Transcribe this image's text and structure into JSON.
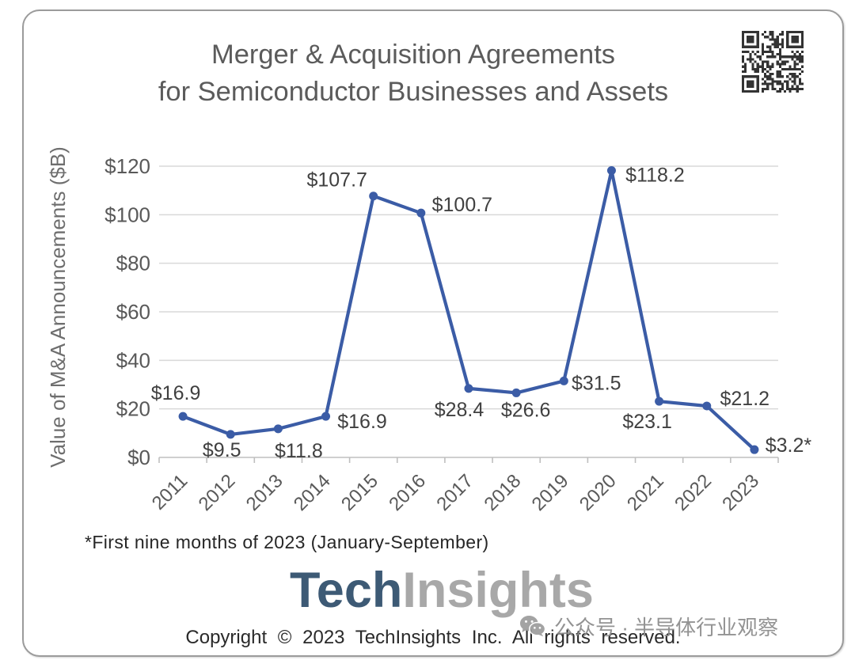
{
  "chart_data": {
    "type": "line",
    "title": "Merger & Acquisition Agreements\nfor Semiconductor Businesses and Assets",
    "ylabel": "Value of M&A Announcements ($B)",
    "categories": [
      "2011",
      "2012",
      "2013",
      "2014",
      "2015",
      "2016",
      "2017",
      "2018",
      "2019",
      "2020",
      "2021",
      "2022",
      "2023"
    ],
    "series": [
      {
        "values": [
          16.9,
          9.5,
          11.8,
          16.9,
          107.7,
          100.7,
          28.4,
          26.6,
          31.5,
          118.2,
          23.1,
          21.2,
          3.2
        ],
        "data_labels": [
          "$16.9",
          "$9.5",
          "$11.8",
          "$16.9",
          "$107.7",
          "$100.7",
          "$28.4",
          "$26.6",
          "$31.5",
          "$118.2",
          "$23.1",
          "$21.2",
          "$3.2*"
        ],
        "color": "#3b5ca6",
        "markers": true
      }
    ],
    "ylim": [
      0,
      120
    ],
    "yticks": [
      0,
      20,
      40,
      60,
      80,
      100,
      120
    ],
    "ytick_labels": [
      "$0",
      "$20",
      "$40",
      "$60",
      "$80",
      "$100",
      "$120"
    ],
    "grid": true,
    "legend": false,
    "footnote": "*First nine months of 2023 (January-September)"
  },
  "branding": {
    "logo": {
      "part1": "Tech",
      "part2": "Insights",
      "part1_color": "#3d5a75",
      "part2_color": "#a8a8a8"
    },
    "copyright": "Copyright © 2023 TechInsights Inc. All rights reserved.",
    "qr_code": "qr-code-icon"
  },
  "watermark": {
    "icon": "wechat-icon",
    "text": "公众号 · 半导体行业观察"
  }
}
